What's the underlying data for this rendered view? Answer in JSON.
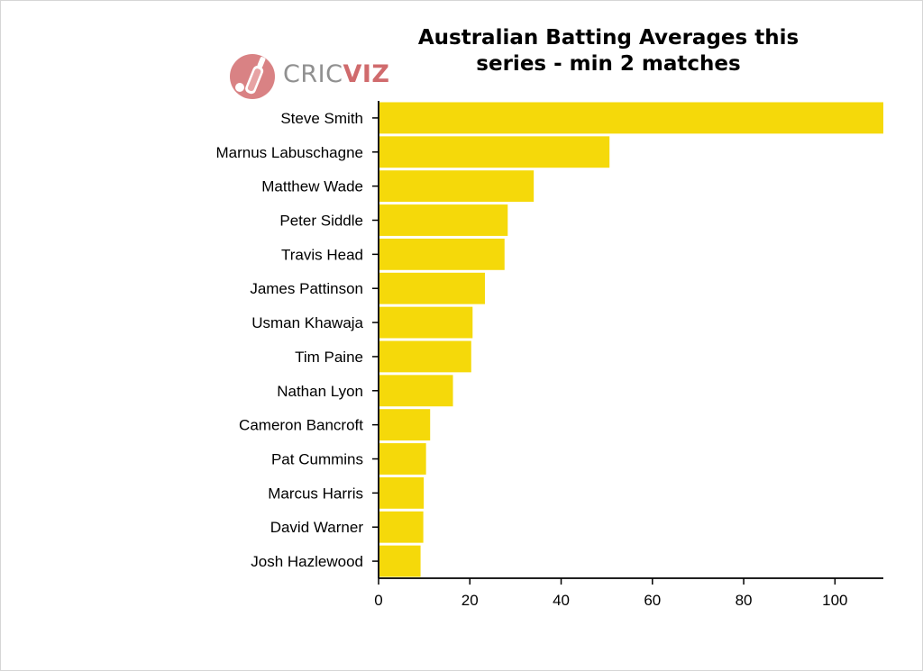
{
  "chart_data": {
    "type": "bar",
    "orientation": "horizontal",
    "title_lines": [
      "Australian Batting Averages this",
      "series - min 2 matches"
    ],
    "categories": [
      "Steve Smith",
      "Marnus Labuschagne",
      "Matthew Wade",
      "Peter Siddle",
      "Travis Head",
      "James Pattinson",
      "Usman Khawaja",
      "Tim Paine",
      "Nathan Lyon",
      "Cameron Bancroft",
      "Pat Cummins",
      "Marcus Harris",
      "David Warner",
      "Josh Hazlewood"
    ],
    "values": [
      110.6,
      50.6,
      34.0,
      28.3,
      27.6,
      23.3,
      20.6,
      20.3,
      16.3,
      11.3,
      10.4,
      9.9,
      9.8,
      9.2
    ],
    "xlabel": "",
    "ylabel": "",
    "xlim": [
      0,
      110.6
    ],
    "xticks": [
      0,
      20,
      40,
      60,
      80,
      100
    ],
    "grid": false,
    "bar_color": "#f5d90a"
  },
  "logo": {
    "text_prefix": "CRIC",
    "text_suffix": "VIZ",
    "icon": "cricket-bat-ball-icon",
    "colors": {
      "accent": "#d06b6d",
      "grey": "#909090"
    }
  }
}
